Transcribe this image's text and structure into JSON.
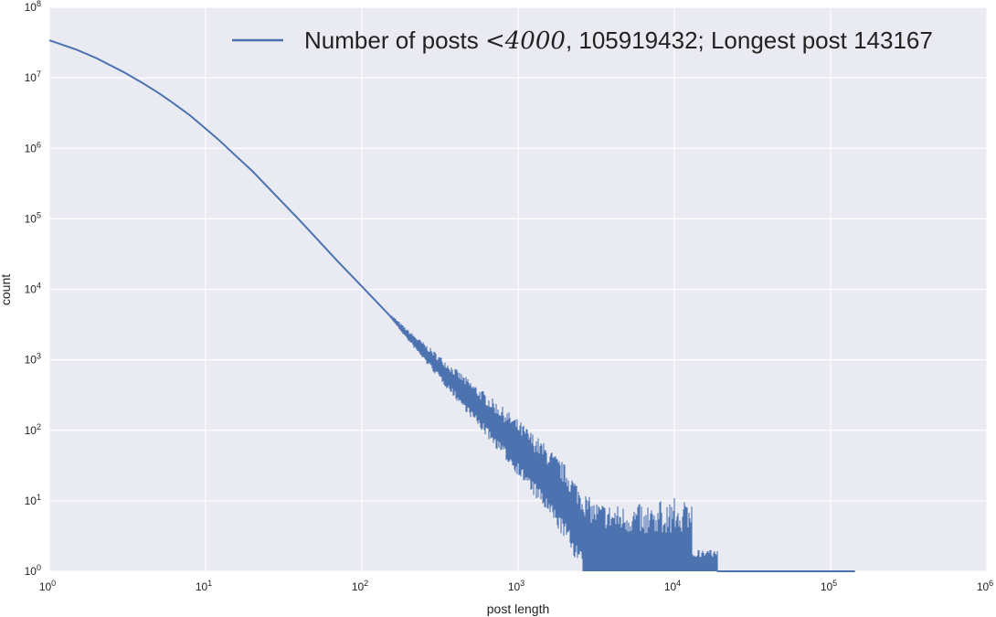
{
  "chart_data": {
    "type": "line",
    "title": "",
    "xlabel": "post length",
    "ylabel": "count",
    "x_scale": "log",
    "y_scale": "log",
    "xlim": [
      1,
      1000000
    ],
    "ylim": [
      1,
      100000000
    ],
    "x_ticks": [
      {
        "base": "10",
        "exp": "0"
      },
      {
        "base": "10",
        "exp": "1"
      },
      {
        "base": "10",
        "exp": "2"
      },
      {
        "base": "10",
        "exp": "3"
      },
      {
        "base": "10",
        "exp": "4"
      },
      {
        "base": "10",
        "exp": "5"
      },
      {
        "base": "10",
        "exp": "6"
      }
    ],
    "y_ticks": [
      {
        "base": "10",
        "exp": "0"
      },
      {
        "base": "10",
        "exp": "1"
      },
      {
        "base": "10",
        "exp": "2"
      },
      {
        "base": "10",
        "exp": "3"
      },
      {
        "base": "10",
        "exp": "4"
      },
      {
        "base": "10",
        "exp": "5"
      },
      {
        "base": "10",
        "exp": "6"
      },
      {
        "base": "10",
        "exp": "7"
      },
      {
        "base": "10",
        "exp": "8"
      }
    ],
    "grid": true,
    "legend_position": "top-right",
    "colors": {
      "background": "#EAEAF2",
      "grid": "#FFFFFF",
      "line": "#4C72B0"
    },
    "legend": {
      "prefix": "Number of posts ",
      "math": "<4000",
      "suffix": ", 105919432; Longest post 143167"
    },
    "series": [
      {
        "name": "Number of posts <4000, 105919432; Longest post 143167",
        "x": [
          1,
          1.5,
          2,
          3,
          4,
          5,
          6,
          7,
          8,
          10,
          12,
          15,
          20,
          30,
          40,
          50,
          70,
          100,
          150,
          200,
          300,
          500,
          700,
          1000,
          1500,
          2000,
          2600,
          3000,
          4000,
          5000,
          7000,
          10000,
          15000,
          18000,
          19000,
          30000,
          50000,
          100000,
          143167
        ],
        "y": [
          34000000,
          25000000,
          19000000,
          12000000,
          8300000,
          6100000,
          4600000,
          3600000,
          2900000,
          1900000,
          1350000,
          850000,
          470000,
          185000,
          95000,
          56000,
          25000,
          11000,
          4300,
          2100,
          820,
          250,
          115,
          50,
          18,
          8,
          3,
          2,
          1.5,
          1.3,
          1.2,
          1.15,
          1.1,
          1.1,
          1,
          1,
          1,
          1,
          1
        ]
      }
    ]
  }
}
